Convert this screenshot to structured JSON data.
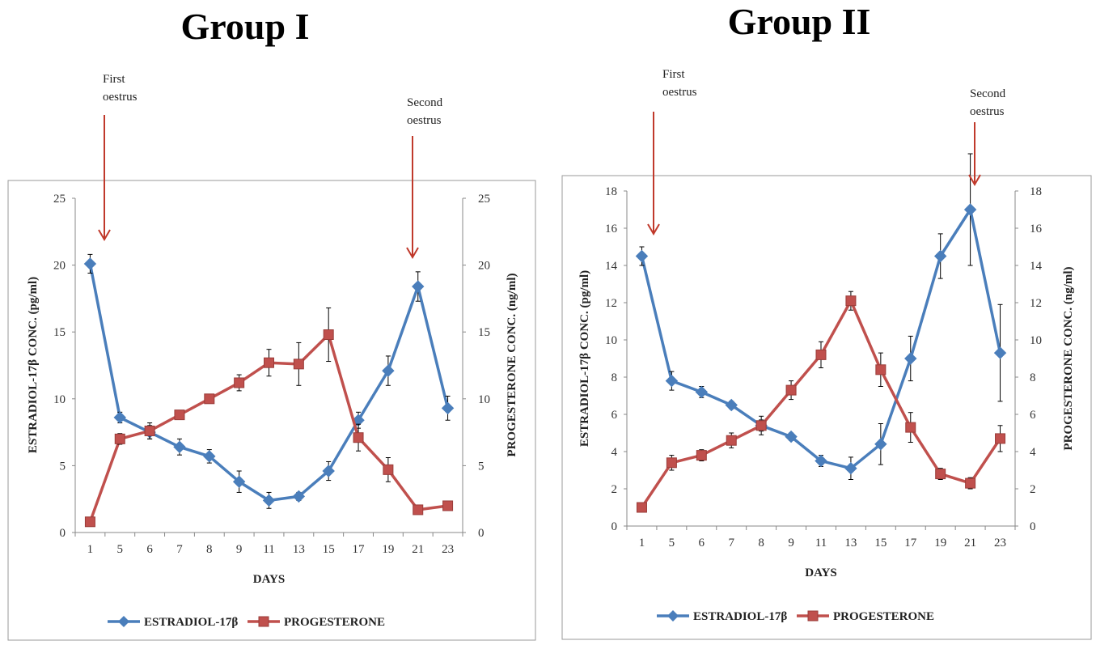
{
  "chart_data": [
    {
      "type": "line",
      "title": "Group I",
      "xlabel": "DAYS",
      "ylabel_left": "ESTRADIOL-17β CONC. (pg/ml)",
      "ylabel_right": "PROGESTERONE CONC. (ng/ml)",
      "categories": [
        "1",
        "5",
        "6",
        "7",
        "8",
        "9",
        "11",
        "13",
        "15",
        "17",
        "19",
        "21",
        "23"
      ],
      "ylim_left": [
        0,
        25
      ],
      "ylim_right": [
        0,
        25
      ],
      "yticks": [
        "0",
        "5",
        "10",
        "15",
        "20",
        "25"
      ],
      "series": [
        {
          "name": "ESTRADIOL-17β",
          "axis": "left",
          "marker": "diamond",
          "color": "#4a7ebb",
          "values": [
            20.1,
            8.6,
            7.5,
            6.4,
            5.7,
            3.8,
            2.4,
            2.7,
            4.6,
            8.4,
            12.1,
            18.4,
            9.3
          ],
          "errors": [
            0.7,
            0.4,
            0.5,
            0.6,
            0.5,
            0.8,
            0.6,
            0.3,
            0.7,
            0.6,
            1.1,
            1.1,
            0.9
          ]
        },
        {
          "name": "PROGESTERONE",
          "axis": "right",
          "marker": "square",
          "color": "#c0504d",
          "values": [
            0.8,
            7.0,
            7.6,
            8.8,
            10.0,
            11.2,
            12.7,
            12.6,
            14.8,
            7.1,
            4.7,
            1.7,
            2.0
          ],
          "errors": [
            0.2,
            0.4,
            0.6,
            0.3,
            0.3,
            0.6,
            1.0,
            1.6,
            2.0,
            1.0,
            0.9,
            0.2,
            0.2
          ]
        }
      ],
      "annotations": [
        {
          "lines": [
            "First",
            "oestrus"
          ],
          "at_day": "1"
        },
        {
          "lines": [
            "Second",
            "oestrus"
          ],
          "at_day": "21"
        }
      ]
    },
    {
      "type": "line",
      "title": "Group II",
      "xlabel": "DAYS",
      "ylabel_left": "ESTRADIOL-17β CONC. (pg/ml)",
      "ylabel_right": "PROGESTERONE CONC. (ng/ml)",
      "categories": [
        "1",
        "5",
        "6",
        "7",
        "8",
        "9",
        "11",
        "13",
        "15",
        "17",
        "19",
        "21",
        "23"
      ],
      "ylim_left": [
        0,
        18
      ],
      "ylim_right": [
        0,
        18
      ],
      "yticks": [
        "0",
        "2",
        "4",
        "6",
        "8",
        "10",
        "12",
        "14",
        "16",
        "18"
      ],
      "series": [
        {
          "name": "ESTRADIOL-17β",
          "axis": "left",
          "marker": "diamond",
          "color": "#4a7ebb",
          "values": [
            14.5,
            7.8,
            7.2,
            6.5,
            5.4,
            4.8,
            3.5,
            3.1,
            4.4,
            9.0,
            14.5,
            17.0,
            9.3
          ],
          "errors": [
            0.5,
            0.5,
            0.3,
            0.2,
            0.3,
            0.2,
            0.3,
            0.6,
            1.1,
            1.2,
            1.2,
            3.0,
            2.6
          ]
        },
        {
          "name": "PROGESTERONE",
          "axis": "right",
          "marker": "square",
          "color": "#c0504d",
          "values": [
            1.0,
            3.4,
            3.8,
            4.6,
            5.4,
            7.3,
            9.2,
            12.1,
            8.4,
            5.3,
            2.8,
            2.3,
            4.7
          ],
          "errors": [
            0.1,
            0.4,
            0.3,
            0.4,
            0.5,
            0.5,
            0.7,
            0.5,
            0.9,
            0.8,
            0.3,
            0.3,
            0.7
          ]
        }
      ],
      "annotations": [
        {
          "lines": [
            "First",
            "oestrus"
          ],
          "at_day": "1"
        },
        {
          "lines": [
            "Second",
            "oestrus"
          ],
          "at_day": "21"
        }
      ]
    }
  ]
}
